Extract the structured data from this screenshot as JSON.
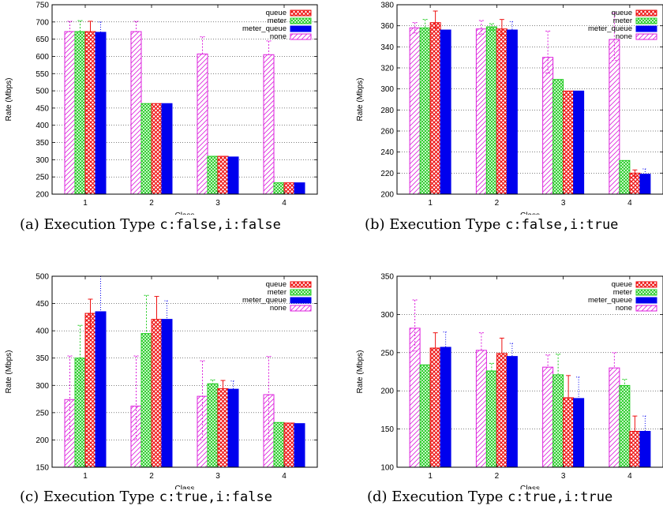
{
  "colors": {
    "queue": "#ee1111",
    "meter": "#22cc22",
    "meter_queue": "#0000ee",
    "none": "#dd22dd"
  },
  "chart_data": [
    {
      "type": "bar",
      "caption_label": "(a) Execution Type ",
      "caption_code": "c:false,i:false",
      "xlabel": "Class",
      "ylabel": "Rate (Mbps)",
      "ylim": [
        200,
        750
      ],
      "yticks": [
        200,
        250,
        300,
        350,
        400,
        450,
        500,
        550,
        600,
        650,
        700,
        750
      ],
      "categories": [
        "1",
        "2",
        "3",
        "4"
      ],
      "legend": [
        "queue",
        "meter",
        "meter_queue",
        "none"
      ],
      "series": [
        {
          "name": "none",
          "values": [
            672,
            672,
            607,
            605
          ],
          "err_low": [
            0,
            0,
            0,
            0
          ],
          "err_high": [
            30,
            30,
            50,
            40
          ]
        },
        {
          "name": "meter",
          "values": [
            672,
            463,
            310,
            233
          ],
          "err_low": [
            0,
            0,
            0,
            0
          ],
          "err_high": [
            32,
            0,
            0,
            0
          ]
        },
        {
          "name": "queue",
          "values": [
            672,
            463,
            310,
            233
          ],
          "err_low": [
            0,
            0,
            0,
            0
          ],
          "err_high": [
            30,
            0,
            0,
            0
          ]
        },
        {
          "name": "meter_queue",
          "values": [
            670,
            463,
            308,
            233
          ],
          "err_low": [
            0,
            0,
            0,
            0
          ],
          "err_high": [
            30,
            0,
            0,
            0
          ]
        }
      ]
    },
    {
      "type": "bar",
      "caption_label": "(b) Execution Type ",
      "caption_code": "c:false,i:true",
      "xlabel": "Class",
      "ylabel": "Rate (Mbps)",
      "ylim": [
        200,
        380
      ],
      "yticks": [
        200,
        220,
        240,
        260,
        280,
        300,
        320,
        340,
        360,
        380
      ],
      "categories": [
        "1",
        "2",
        "3",
        "4"
      ],
      "legend": [
        "queue",
        "meter",
        "meter_queue",
        "none"
      ],
      "series": [
        {
          "name": "none",
          "values": [
            358,
            357,
            330,
            347
          ],
          "err_low": [
            5,
            5,
            15,
            20
          ],
          "err_high": [
            5,
            8,
            25,
            25
          ]
        },
        {
          "name": "meter",
          "values": [
            358,
            359,
            309,
            232
          ],
          "err_low": [
            4,
            3,
            0,
            0
          ],
          "err_high": [
            8,
            3,
            0,
            0
          ]
        },
        {
          "name": "queue",
          "values": [
            363,
            357,
            298,
            220
          ],
          "err_low": [
            5,
            5,
            0,
            3
          ],
          "err_high": [
            11,
            9,
            0,
            3
          ]
        },
        {
          "name": "meter_queue",
          "values": [
            356,
            356,
            298,
            219
          ],
          "err_low": [
            0,
            0,
            0,
            3
          ],
          "err_high": [
            0,
            8,
            0,
            5
          ]
        }
      ]
    },
    {
      "type": "bar",
      "caption_label": "(c) Execution Type ",
      "caption_code": "c:true,i:false",
      "xlabel": "Class",
      "ylabel": "Rate (Mbps)",
      "ylim": [
        150,
        500
      ],
      "yticks": [
        150,
        200,
        250,
        300,
        350,
        400,
        450,
        500
      ],
      "categories": [
        "1",
        "2",
        "3",
        "4"
      ],
      "legend": [
        "queue",
        "meter",
        "meter_queue",
        "none"
      ],
      "series": [
        {
          "name": "none",
          "values": [
            274,
            262,
            280,
            283
          ],
          "err_low": [
            74,
            62,
            80,
            83
          ],
          "err_high": [
            80,
            92,
            65,
            70
          ]
        },
        {
          "name": "meter",
          "values": [
            350,
            395,
            303,
            232
          ],
          "err_low": [
            60,
            0,
            0,
            0
          ],
          "err_high": [
            60,
            70,
            7,
            0
          ]
        },
        {
          "name": "queue",
          "values": [
            432,
            421,
            294,
            231
          ],
          "err_low": [
            25,
            0,
            0,
            0
          ],
          "err_high": [
            26,
            42,
            15,
            0
          ]
        },
        {
          "name": "meter_queue",
          "values": [
            435,
            421,
            293,
            230
          ],
          "err_low": [
            35,
            0,
            0,
            0
          ],
          "err_high": [
            65,
            34,
            15,
            0
          ]
        }
      ]
    },
    {
      "type": "bar",
      "caption_label": "(d) Execution Type ",
      "caption_code": "c:true,i:true",
      "xlabel": "Class",
      "ylabel": "Rate (Mbps)",
      "ylim": [
        100,
        350
      ],
      "yticks": [
        100,
        150,
        200,
        250,
        300,
        350
      ],
      "categories": [
        "1",
        "2",
        "3",
        "4"
      ],
      "legend": [
        "queue",
        "meter",
        "meter_queue",
        "none"
      ],
      "series": [
        {
          "name": "none",
          "values": [
            282,
            253,
            231,
            230
          ],
          "err_low": [
            30,
            0,
            0,
            0
          ],
          "err_high": [
            37,
            23,
            16,
            20
          ]
        },
        {
          "name": "meter",
          "values": [
            234,
            226,
            221,
            207
          ],
          "err_low": [
            0,
            0,
            0,
            0
          ],
          "err_high": [
            0,
            10,
            27,
            8
          ]
        },
        {
          "name": "queue",
          "values": [
            256,
            249,
            191,
            147
          ],
          "err_low": [
            0,
            0,
            0,
            0
          ],
          "err_high": [
            20,
            20,
            29,
            20
          ]
        },
        {
          "name": "meter_queue",
          "values": [
            257,
            245,
            190,
            147
          ],
          "err_low": [
            0,
            0,
            0,
            0
          ],
          "err_high": [
            20,
            17,
            28,
            20
          ]
        }
      ]
    }
  ]
}
